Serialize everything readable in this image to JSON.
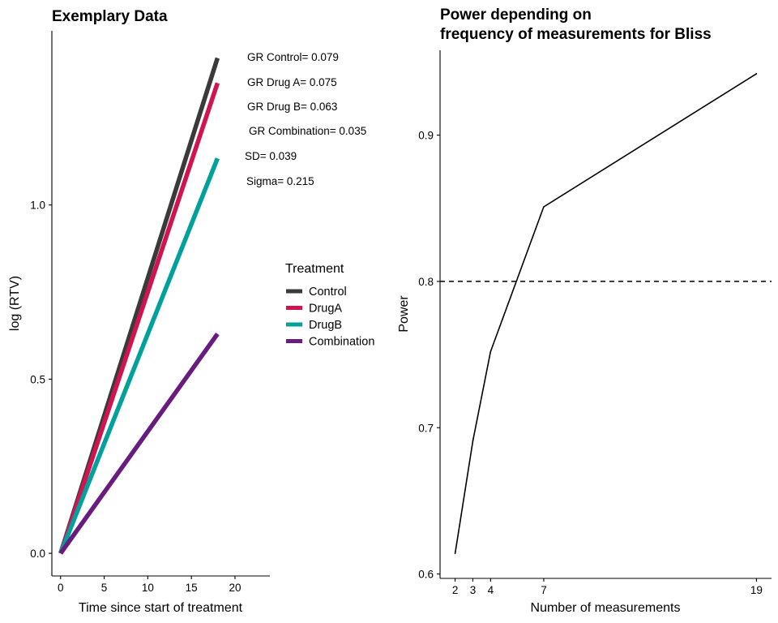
{
  "chart_data": [
    {
      "type": "line",
      "title": "Exemplary Data",
      "xlabel": "Time since start of treatment",
      "ylabel": "log (RTV)",
      "xlim": [
        -1,
        24
      ],
      "ylim": [
        -0.065,
        1.5
      ],
      "xticks": [
        0,
        5,
        10,
        15,
        20
      ],
      "yticks": [
        0.0,
        0.5,
        1.0
      ],
      "ytick_labels": [
        "0.0",
        "0.5",
        "1.0"
      ],
      "series": [
        {
          "name": "Control",
          "color": "#3a3a3a",
          "x": [
            0,
            18
          ],
          "y": [
            0,
            1.422
          ]
        },
        {
          "name": "DrugA",
          "color": "#d1134f",
          "x": [
            0,
            18
          ],
          "y": [
            0,
            1.35
          ]
        },
        {
          "name": "DrugB",
          "color": "#00a19a",
          "x": [
            0,
            18
          ],
          "y": [
            0,
            1.134
          ]
        },
        {
          "name": "Combination",
          "color": "#6a1b7f",
          "x": [
            0,
            18
          ],
          "y": [
            0,
            0.63
          ]
        }
      ],
      "legend": {
        "title": "Treatment",
        "placement": "right"
      },
      "annotations": [
        "GR Control= 0.079",
        "GR Drug A= 0.075",
        "GR Drug B= 0.063",
        "GR Combination= 0.035",
        "SD= 0.039",
        "Sigma= 0.215"
      ]
    },
    {
      "type": "line",
      "title_lines": [
        "Power depending on",
        "frequency of measurements for Bliss"
      ],
      "xlabel": "Number of measurements",
      "ylabel": "Power",
      "xlim": [
        1.15,
        19.85
      ],
      "ylim": [
        0.597,
        0.958
      ],
      "xticks": [
        2,
        3,
        4,
        7,
        19
      ],
      "yticks": [
        0.6,
        0.7,
        0.8,
        0.9
      ],
      "ytick_labels": [
        "0.6",
        "0.7",
        "0.8",
        "0.9"
      ],
      "x": [
        2,
        3,
        4,
        7,
        19
      ],
      "y": [
        0.614,
        0.691,
        0.752,
        0.851,
        0.942
      ],
      "line_color": "#000000",
      "reference_line": {
        "y": 0.8,
        "style": "dashed",
        "color": "#000000"
      }
    }
  ]
}
